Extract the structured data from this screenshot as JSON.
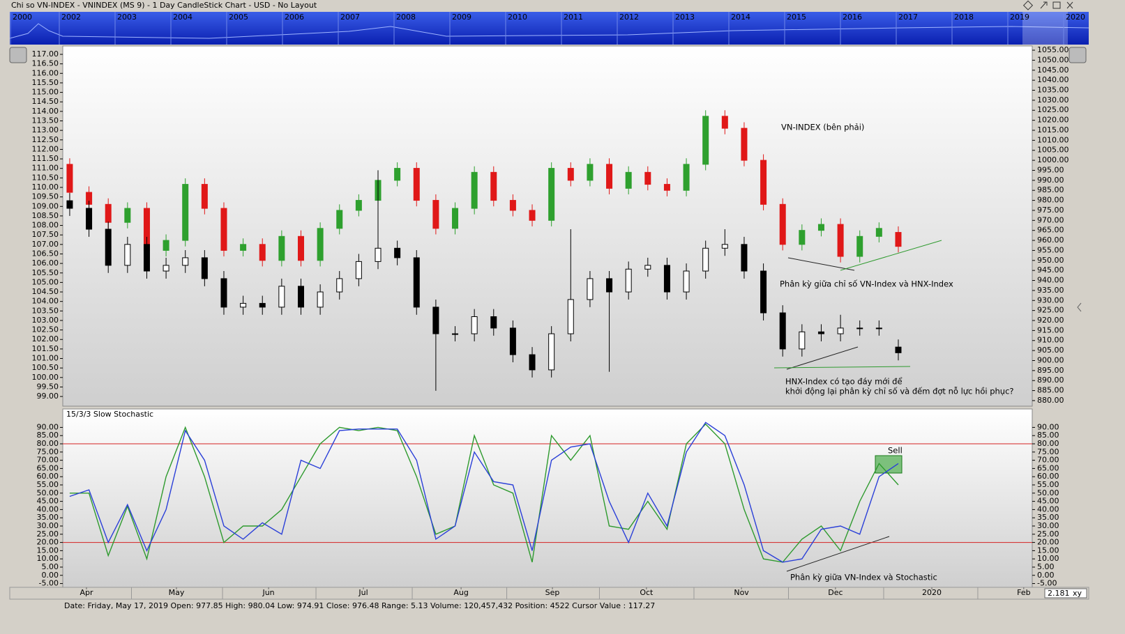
{
  "window": {
    "title": "Chi so VN-INDEX - VNINDEX (MS 9) - 1 Day CandleStick Chart - USD - No Layout",
    "zoom": "2.181",
    "zoom_mode": "xy"
  },
  "navigator": {
    "years": [
      "2000",
      "2002",
      "2003",
      "2004",
      "2005",
      "2006",
      "2007",
      "2008",
      "2009",
      "2010",
      "2011",
      "2012",
      "2013",
      "2014",
      "2015",
      "2016",
      "2017",
      "2018",
      "2019",
      "2020"
    ]
  },
  "status_bar": "Date: Friday, May 17, 2019 Open: 977.85 High: 980.04 Low: 974.91 Close: 976.48 Range: 5.13 Volume: 120,457,432 Position: 4522 Cursor Value : 117.27",
  "chart_data": [
    {
      "type": "candlestick",
      "annotations": [
        "VN-INDEX (bên phải)",
        "Phân kỳ giữa chỉ số VN-Index và HNX-Index",
        "HNX-Index có tạo đáy mới để",
        "khởi động lại phân kỳ chỉ số và đếm đợt nỗ lực hồi phục?"
      ],
      "xlim": [
        -0.36,
        49.95
      ],
      "ylim": [
        98.49,
        117.44
      ],
      "yticks": [
        {
          "value": 117,
          "label": "117.00"
        },
        {
          "value": 116.5,
          "label": "116.50"
        },
        {
          "value": 116,
          "label": "116.00"
        },
        {
          "value": 115.5,
          "label": "115.50"
        },
        {
          "value": 115,
          "label": "115.00"
        },
        {
          "value": 114.5,
          "label": "114.50"
        },
        {
          "value": 114,
          "label": "114.00"
        },
        {
          "value": 113.5,
          "label": "113.50"
        },
        {
          "value": 113,
          "label": "113.00"
        },
        {
          "value": 112.5,
          "label": "112.50"
        },
        {
          "value": 112,
          "label": "112.00"
        },
        {
          "value": 111.5,
          "label": "111.50"
        },
        {
          "value": 111,
          "label": "111.00"
        },
        {
          "value": 110.5,
          "label": "110.50"
        },
        {
          "value": 110,
          "label": "110.00"
        },
        {
          "value": 109.5,
          "label": "109.50"
        },
        {
          "value": 109,
          "label": "109.00"
        },
        {
          "value": 108.5,
          "label": "108.50"
        },
        {
          "value": 108,
          "label": "108.00"
        },
        {
          "value": 107.5,
          "label": "107.50"
        },
        {
          "value": 107,
          "label": "107.00"
        },
        {
          "value": 106.5,
          "label": "106.50"
        },
        {
          "value": 106,
          "label": "106.00"
        },
        {
          "value": 105.5,
          "label": "105.50"
        },
        {
          "value": 105,
          "label": "105.00"
        },
        {
          "value": 104.5,
          "label": "104.50"
        },
        {
          "value": 104,
          "label": "104.00"
        },
        {
          "value": 103.5,
          "label": "103.50"
        },
        {
          "value": 103,
          "label": "103.00"
        },
        {
          "value": 102.5,
          "label": "102.50"
        },
        {
          "value": 102,
          "label": "102.00"
        },
        {
          "value": 101.5,
          "label": "101.50"
        },
        {
          "value": 101,
          "label": "101.00"
        },
        {
          "value": 100.5,
          "label": "100.50"
        },
        {
          "value": 100,
          "label": "100.00"
        },
        {
          "value": 99.5,
          "label": "99.50"
        },
        {
          "value": 99,
          "label": "99.00"
        }
      ],
      "y2lim": [
        877.2,
        1057.1
      ],
      "y2ticks": [
        {
          "value": 1055,
          "label": "1055.00"
        },
        {
          "value": 1050,
          "label": "1050.00"
        },
        {
          "value": 1045,
          "label": "1045.00"
        },
        {
          "value": 1040,
          "label": "1040.00"
        },
        {
          "value": 1035,
          "label": "1035.00"
        },
        {
          "value": 1030,
          "label": "1030.00"
        },
        {
          "value": 1025,
          "label": "1025.00"
        },
        {
          "value": 1020,
          "label": "1020.00"
        },
        {
          "value": 1015,
          "label": "1015.00"
        },
        {
          "value": 1010,
          "label": "1010.00"
        },
        {
          "value": 1005,
          "label": "1005.00"
        },
        {
          "value": 1000,
          "label": "1000.00"
        },
        {
          "value": 995,
          "label": "995.00"
        },
        {
          "value": 990,
          "label": "990.00"
        },
        {
          "value": 985,
          "label": "985.00"
        },
        {
          "value": 980,
          "label": "980.00"
        },
        {
          "value": 975,
          "label": "975.00"
        },
        {
          "value": 970,
          "label": "970.00"
        },
        {
          "value": 965,
          "label": "965.00"
        },
        {
          "value": 960,
          "label": "960.00"
        },
        {
          "value": 955,
          "label": "955.00"
        },
        {
          "value": 950,
          "label": "950.00"
        },
        {
          "value": 945,
          "label": "945.00"
        },
        {
          "value": 940,
          "label": "940.00"
        },
        {
          "value": 935,
          "label": "935.00"
        },
        {
          "value": 930,
          "label": "930.00"
        },
        {
          "value": 925,
          "label": "925.00"
        },
        {
          "value": 920,
          "label": "920.00"
        },
        {
          "value": 915,
          "label": "915.00"
        },
        {
          "value": 910,
          "label": "910.00"
        },
        {
          "value": 905,
          "label": "905.00"
        },
        {
          "value": 900,
          "label": "900.00"
        },
        {
          "value": 895,
          "label": "895.00"
        },
        {
          "value": 890,
          "label": "890.00"
        },
        {
          "value": 885,
          "label": "885.00"
        },
        {
          "value": 880,
          "label": "880.00"
        }
      ],
      "series": [
        {
          "axis": "y2",
          "up_color": "#2ea02e",
          "down_color": "#e01818",
          "open": [
            998,
            984,
            978,
            969,
            976,
            955,
            960,
            988,
            976,
            955,
            958,
            950,
            962,
            950,
            966,
            975,
            980,
            990,
            996,
            980,
            966,
            976,
            994,
            980,
            975,
            970,
            996,
            990,
            998,
            986,
            994,
            988,
            985,
            998,
            1022,
            1016,
            1000,
            978,
            958,
            965,
            968,
            952,
            962,
            964
          ],
          "high": [
            1001,
            987,
            981,
            979,
            979,
            963,
            991,
            991,
            979,
            961,
            961,
            965,
            965,
            969,
            978,
            983,
            993,
            999,
            999,
            983,
            979,
            997,
            997,
            983,
            978,
            999,
            999,
            1001,
            1001,
            997,
            997,
            991,
            1001,
            1025,
            1025,
            1019,
            1003,
            981,
            968,
            971,
            971,
            965,
            969,
            967
          ],
          "low": [
            981,
            975,
            966,
            966,
            952,
            952,
            957,
            973,
            952,
            952,
            947,
            947,
            947,
            947,
            963,
            972,
            977,
            987,
            977,
            963,
            963,
            973,
            977,
            972,
            967,
            967,
            987,
            987,
            983,
            983,
            985,
            982,
            982,
            995,
            1013,
            997,
            975,
            955,
            955,
            962,
            949,
            949,
            959,
            954
          ],
          "close": [
            984,
            978,
            969,
            976,
            955,
            960,
            988,
            976,
            955,
            958,
            950,
            962,
            950,
            966,
            975,
            980,
            990,
            996,
            980,
            966,
            976,
            994,
            980,
            975,
            970,
            996,
            990,
            998,
            986,
            994,
            988,
            985,
            998,
            1022,
            1016,
            1000,
            978,
            958,
            965,
            968,
            952,
            962,
            966,
            957
          ]
        },
        {
          "axis": "y",
          "up_color": "#ffffff",
          "down_color": "#000000",
          "open": [
            109.3,
            108.9,
            107.8,
            105.9,
            107.0,
            105.6,
            105.9,
            106.3,
            105.2,
            103.7,
            103.9,
            103.7,
            104.8,
            103.7,
            104.5,
            105.2,
            106.1,
            106.8,
            106.3,
            103.7,
            102.3,
            102.3,
            103.2,
            102.6,
            101.2,
            100.4,
            102.3,
            104.1,
            105.2,
            104.5,
            105.7,
            105.9,
            104.5,
            105.6,
            106.8,
            107.0,
            105.6,
            103.4,
            101.5,
            102.4,
            102.3,
            102.6,
            102.6,
            101.6
          ],
          "high": [
            109.7,
            109.3,
            108.2,
            107.4,
            107.4,
            106.3,
            106.7,
            106.7,
            105.6,
            104.3,
            104.3,
            105.2,
            105.2,
            104.9,
            105.6,
            106.5,
            110.9,
            107.2,
            106.7,
            104.1,
            102.7,
            103.6,
            103.6,
            103.0,
            101.6,
            102.7,
            107.8,
            105.6,
            105.6,
            106.1,
            106.3,
            106.3,
            106.0,
            107.2,
            107.8,
            107.4,
            106.0,
            103.8,
            102.8,
            102.8,
            103.3,
            103.0,
            103.0,
            102.0
          ],
          "low": [
            108.5,
            107.4,
            105.5,
            105.5,
            105.2,
            105.2,
            105.5,
            104.8,
            103.3,
            103.3,
            103.3,
            103.3,
            103.3,
            103.3,
            104.1,
            104.8,
            105.7,
            105.9,
            103.3,
            99.3,
            101.9,
            101.9,
            102.2,
            100.8,
            100.0,
            100.0,
            101.9,
            103.7,
            100.3,
            104.1,
            105.3,
            104.1,
            104.1,
            105.2,
            106.4,
            105.2,
            103.0,
            101.1,
            101.1,
            101.9,
            101.9,
            102.2,
            102.2,
            100.9
          ],
          "close": [
            108.9,
            107.8,
            105.9,
            107.0,
            105.6,
            105.9,
            106.3,
            105.2,
            103.7,
            103.9,
            103.7,
            104.8,
            103.7,
            104.5,
            105.2,
            106.1,
            106.8,
            106.3,
            103.7,
            102.3,
            102.3,
            103.2,
            102.6,
            101.2,
            100.4,
            102.3,
            104.1,
            105.2,
            104.5,
            105.7,
            105.9,
            104.5,
            105.6,
            106.8,
            107.0,
            105.6,
            103.4,
            101.5,
            102.4,
            102.3,
            102.6,
            102.6,
            102.6,
            101.3
          ]
        }
      ]
    },
    {
      "type": "line",
      "title": "15/3/3 Slow Stochastic",
      "annotations": [
        "Sell",
        "Phân kỳ giữa VN-Index và Stochastic"
      ],
      "xlim": [
        -0.36,
        49.95
      ],
      "xticks": [
        {
          "value": 0.87,
          "label": "Apr"
        },
        {
          "value": 5.54,
          "label": "May"
        },
        {
          "value": 10.32,
          "label": "Jun"
        },
        {
          "value": 15.24,
          "label": "Jul"
        },
        {
          "value": 20.31,
          "label": "Aug"
        },
        {
          "value": 25.05,
          "label": "Sep"
        },
        {
          "value": 29.93,
          "label": "Oct"
        },
        {
          "value": 34.86,
          "label": "Nov"
        },
        {
          "value": 39.74,
          "label": "Dec"
        },
        {
          "value": 44.74,
          "label": "2020"
        },
        {
          "value": 49.51,
          "label": "Feb"
        }
      ],
      "ylim": [
        -7.3,
        101.2
      ],
      "yticks": [
        {
          "value": 90,
          "label": "90.00"
        },
        {
          "value": 85,
          "label": "85.00"
        },
        {
          "value": 80,
          "label": "80.00"
        },
        {
          "value": 75,
          "label": "75.00"
        },
        {
          "value": 70,
          "label": "70.00"
        },
        {
          "value": 65,
          "label": "65.00"
        },
        {
          "value": 60,
          "label": "60.00"
        },
        {
          "value": 55,
          "label": "55.00"
        },
        {
          "value": 50,
          "label": "50.00"
        },
        {
          "value": 45,
          "label": "45.00"
        },
        {
          "value": 40,
          "label": "40.00"
        },
        {
          "value": 35,
          "label": "35.00"
        },
        {
          "value": 30,
          "label": "30.00"
        },
        {
          "value": 25,
          "label": "25.00"
        },
        {
          "value": 20,
          "label": "20.00"
        },
        {
          "value": 15,
          "label": "15.00"
        },
        {
          "value": 10,
          "label": "10.00"
        },
        {
          "value": 5,
          "label": "5.00"
        },
        {
          "value": 0,
          "label": "0.00"
        },
        {
          "value": -5,
          "label": "-5.00"
        }
      ],
      "hlines": [
        80,
        20
      ],
      "hline_color": "#d42020",
      "series": [
        {
          "color": "#2e9a2e",
          "values": [
            50,
            50,
            12,
            42,
            10,
            60,
            90,
            60,
            20,
            30,
            30,
            40,
            60,
            80,
            90,
            88,
            90,
            88,
            60,
            25,
            30,
            85,
            55,
            50,
            8,
            85,
            70,
            85,
            30,
            28,
            45,
            28,
            80,
            92,
            80,
            40,
            10,
            8,
            22,
            30,
            15,
            45,
            68,
            55
          ]
        },
        {
          "color": "#2a3fd8",
          "values": [
            48,
            52,
            20,
            43,
            15,
            40,
            88,
            70,
            30,
            22,
            32,
            25,
            70,
            65,
            88,
            89,
            89,
            89,
            70,
            22,
            30,
            75,
            57,
            55,
            15,
            70,
            78,
            80,
            45,
            20,
            50,
            30,
            75,
            93,
            85,
            55,
            15,
            8,
            10,
            28,
            30,
            25,
            60,
            68
          ]
        }
      ]
    }
  ]
}
